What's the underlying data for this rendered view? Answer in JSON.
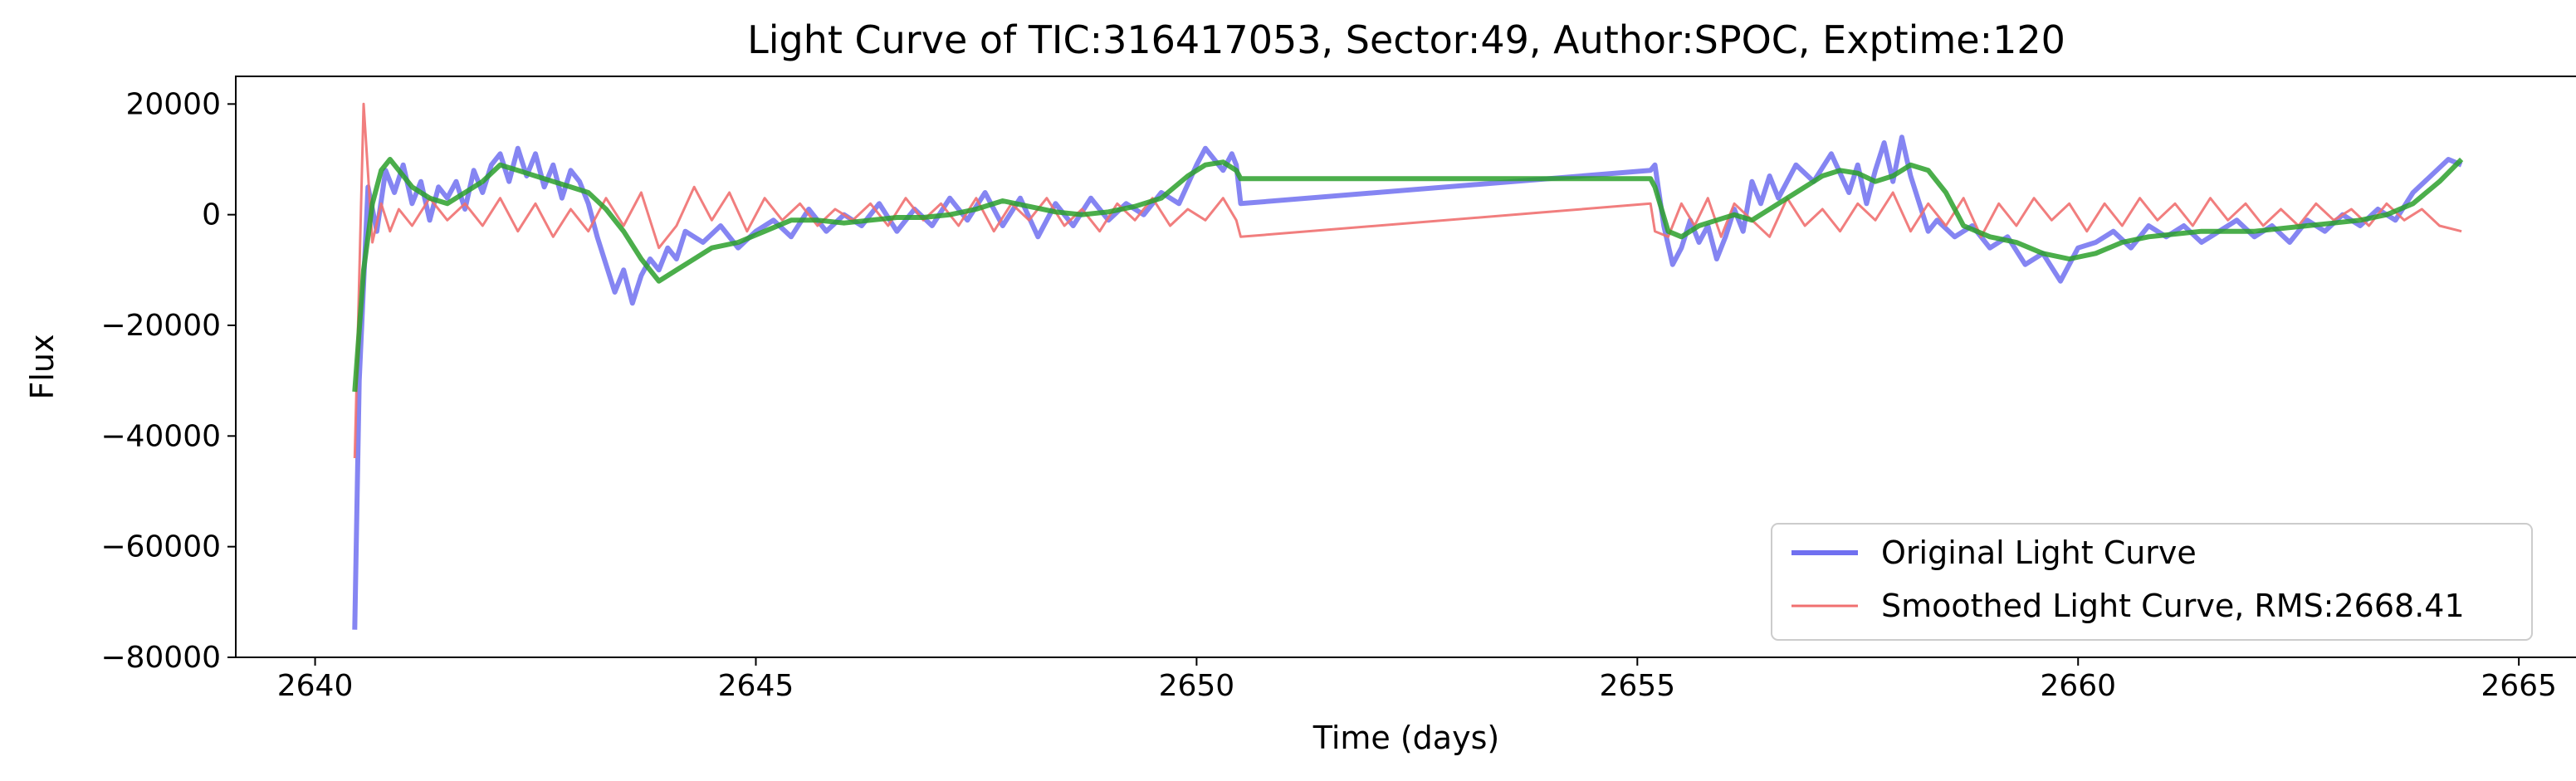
{
  "chart_data": {
    "type": "line",
    "title": "Light Curve of TIC:316417053, Sector:49, Author:SPOC, Exptime:120",
    "xlabel": "Time (days)",
    "ylabel": "Flux",
    "xlim": [
      2639.1,
      2665.3
    ],
    "ylim": [
      -80000,
      25000
    ],
    "x_ticks": [
      2640,
      2645,
      2650,
      2655,
      2660,
      2665
    ],
    "y_ticks": [
      -80000,
      -60000,
      -40000,
      -20000,
      0,
      20000
    ],
    "x_tick_labels": [
      "2640",
      "2645",
      "2650",
      "2655",
      "2660",
      "2665"
    ],
    "y_tick_labels": [
      "−80000",
      "−60000",
      "−40000",
      "−20000",
      "0",
      "20000"
    ],
    "grid": false,
    "legend_position": "lower-right",
    "series": [
      {
        "name": "Original Light Curve",
        "color": "#7070f0",
        "x": [
          2640.45,
          2640.5,
          2640.6,
          2640.7,
          2640.8,
          2640.9,
          2641.0,
          2641.1,
          2641.2,
          2641.3,
          2641.4,
          2641.5,
          2641.6,
          2641.7,
          2641.8,
          2641.9,
          2642.0,
          2642.1,
          2642.2,
          2642.3,
          2642.4,
          2642.5,
          2642.6,
          2642.7,
          2642.8,
          2642.9,
          2643.0,
          2643.1,
          2643.2,
          2643.3,
          2643.4,
          2643.5,
          2643.6,
          2643.7,
          2643.8,
          2643.9,
          2644.0,
          2644.1,
          2644.2,
          2644.4,
          2644.6,
          2644.8,
          2645.0,
          2645.2,
          2645.4,
          2645.6,
          2645.8,
          2646.0,
          2646.2,
          2646.4,
          2646.6,
          2646.8,
          2647.0,
          2647.2,
          2647.4,
          2647.6,
          2647.8,
          2648.0,
          2648.2,
          2648.4,
          2648.6,
          2648.8,
          2649.0,
          2649.2,
          2649.4,
          2649.6,
          2649.8,
          2650.0,
          2650.1,
          2650.2,
          2650.3,
          2650.4,
          2650.45,
          2650.5,
          2655.15,
          2655.2,
          2655.3,
          2655.4,
          2655.5,
          2655.6,
          2655.7,
          2655.8,
          2655.9,
          2656.0,
          2656.1,
          2656.2,
          2656.3,
          2656.4,
          2656.5,
          2656.6,
          2656.8,
          2657.0,
          2657.2,
          2657.4,
          2657.5,
          2657.6,
          2657.7,
          2657.8,
          2657.9,
          2658.0,
          2658.1,
          2658.2,
          2658.3,
          2658.4,
          2658.6,
          2658.8,
          2659.0,
          2659.2,
          2659.4,
          2659.6,
          2659.8,
          2660.0,
          2660.2,
          2660.4,
          2660.6,
          2660.8,
          2661.0,
          2661.2,
          2661.4,
          2661.6,
          2661.8,
          2662.0,
          2662.2,
          2662.4,
          2662.6,
          2662.8,
          2663.0,
          2663.2,
          2663.4,
          2663.6,
          2663.8,
          2664.0,
          2664.2,
          2664.35
        ],
        "y": [
          -75000,
          -30000,
          5000,
          -3000,
          8000,
          4000,
          9000,
          2000,
          6000,
          -1000,
          5000,
          3000,
          6000,
          1000,
          8000,
          4000,
          9000,
          11000,
          6000,
          12000,
          7000,
          11000,
          5000,
          9000,
          3000,
          8000,
          6000,
          2000,
          -4000,
          -9000,
          -14000,
          -10000,
          -16000,
          -11000,
          -8000,
          -10000,
          -6000,
          -8000,
          -3000,
          -5000,
          -2000,
          -6000,
          -3000,
          -1000,
          -4000,
          1000,
          -3000,
          0,
          -2000,
          2000,
          -3000,
          1000,
          -2000,
          3000,
          -1000,
          4000,
          -2000,
          3000,
          -4000,
          2000,
          -2000,
          3000,
          -1000,
          2000,
          0,
          4000,
          2000,
          9000,
          12000,
          10000,
          8000,
          11000,
          9000,
          2000,
          8000,
          9000,
          -2000,
          -9000,
          -6000,
          -1000,
          -5000,
          -2000,
          -8000,
          -4000,
          1000,
          -3000,
          6000,
          2000,
          7000,
          3000,
          9000,
          6000,
          11000,
          4000,
          9000,
          2000,
          8000,
          13000,
          6000,
          14000,
          7000,
          2000,
          -3000,
          -1000,
          -4000,
          -2000,
          -6000,
          -4000,
          -9000,
          -7000,
          -12000,
          -6000,
          -5000,
          -3000,
          -6000,
          -2000,
          -4000,
          -2000,
          -5000,
          -3000,
          -1000,
          -4000,
          -2000,
          -5000,
          -1000,
          -3000,
          0,
          -2000,
          1000,
          -1000,
          4000,
          7000,
          10000,
          9000
        ]
      },
      {
        "name": "Smoothed Light Curve, RMS:2668.41",
        "color": "#f07070",
        "x": [
          2640.45,
          2640.55,
          2640.65,
          2640.75,
          2640.85,
          2640.95,
          2641.1,
          2641.3,
          2641.5,
          2641.7,
          2641.9,
          2642.1,
          2642.3,
          2642.5,
          2642.7,
          2642.9,
          2643.1,
          2643.3,
          2643.5,
          2643.7,
          2643.9,
          2644.1,
          2644.3,
          2644.5,
          2644.7,
          2644.9,
          2645.1,
          2645.3,
          2645.5,
          2645.7,
          2645.9,
          2646.1,
          2646.3,
          2646.5,
          2646.7,
          2646.9,
          2647.1,
          2647.3,
          2647.5,
          2647.7,
          2647.9,
          2648.1,
          2648.3,
          2648.5,
          2648.7,
          2648.9,
          2649.1,
          2649.3,
          2649.5,
          2649.7,
          2649.9,
          2650.1,
          2650.3,
          2650.45,
          2650.5,
          2655.15,
          2655.2,
          2655.35,
          2655.5,
          2655.65,
          2655.8,
          2655.95,
          2656.1,
          2656.3,
          2656.5,
          2656.7,
          2656.9,
          2657.1,
          2657.3,
          2657.5,
          2657.7,
          2657.9,
          2658.1,
          2658.3,
          2658.5,
          2658.7,
          2658.9,
          2659.1,
          2659.3,
          2659.5,
          2659.7,
          2659.9,
          2660.1,
          2660.3,
          2660.5,
          2660.7,
          2660.9,
          2661.1,
          2661.3,
          2661.5,
          2661.7,
          2661.9,
          2662.1,
          2662.3,
          2662.5,
          2662.7,
          2662.9,
          2663.1,
          2663.3,
          2663.5,
          2663.7,
          2663.9,
          2664.1,
          2664.35
        ],
        "y": [
          -44000,
          20000,
          -5000,
          2000,
          -3000,
          1000,
          -2000,
          3000,
          -1000,
          2000,
          -2000,
          3000,
          -3000,
          2000,
          -4000,
          1000,
          -3000,
          3000,
          -2000,
          4000,
          -6000,
          -2000,
          5000,
          -1000,
          4000,
          -3000,
          3000,
          -1000,
          2000,
          -2000,
          1000,
          -1000,
          2000,
          -2000,
          3000,
          -1000,
          2000,
          -2000,
          3000,
          -3000,
          2000,
          -1000,
          3000,
          -2000,
          1000,
          -3000,
          2000,
          -1000,
          3000,
          -2000,
          1000,
          -1000,
          3000,
          -1000,
          -4000,
          2000,
          -3000,
          -4000,
          2000,
          -2000,
          3000,
          -4000,
          2000,
          -1000,
          -4000,
          3000,
          -2000,
          1000,
          -3000,
          2000,
          -1000,
          4000,
          -3000,
          2000,
          -2000,
          3000,
          -4000,
          2000,
          -2000,
          3000,
          -1000,
          2000,
          -3000,
          2000,
          -2000,
          3000,
          -1000,
          2000,
          -2000,
          3000,
          -1000,
          2000,
          -2000,
          1000,
          -2000,
          2000,
          -1000,
          1000,
          -2000,
          2000,
          -1000,
          1000,
          -2000,
          -3000
        ]
      },
      {
        "color": "#2ca02c",
        "x": [
          2640.45,
          2640.55,
          2640.65,
          2640.75,
          2640.85,
          2640.95,
          2641.1,
          2641.3,
          2641.5,
          2641.7,
          2641.9,
          2642.1,
          2642.3,
          2642.5,
          2642.7,
          2642.9,
          2643.1,
          2643.3,
          2643.5,
          2643.7,
          2643.9,
          2644.1,
          2644.3,
          2644.5,
          2644.8,
          2645.1,
          2645.4,
          2645.7,
          2646.0,
          2646.3,
          2646.6,
          2646.9,
          2647.2,
          2647.5,
          2647.8,
          2648.1,
          2648.4,
          2648.7,
          2649.0,
          2649.3,
          2649.6,
          2649.9,
          2650.1,
          2650.3,
          2650.45,
          2650.5,
          2655.15,
          2655.2,
          2655.35,
          2655.5,
          2655.7,
          2655.9,
          2656.1,
          2656.3,
          2656.5,
          2656.7,
          2656.9,
          2657.1,
          2657.3,
          2657.5,
          2657.7,
          2657.9,
          2658.1,
          2658.3,
          2658.5,
          2658.7,
          2659.0,
          2659.3,
          2659.6,
          2659.9,
          2660.2,
          2660.5,
          2660.8,
          2661.1,
          2661.4,
          2661.7,
          2662.0,
          2662.3,
          2662.6,
          2662.9,
          2663.2,
          2663.5,
          2663.8,
          2664.1,
          2664.35
        ],
        "y": [
          -32000,
          -10000,
          2000,
          8000,
          10000,
          8000,
          5000,
          3000,
          2000,
          4000,
          6000,
          9000,
          8000,
          7000,
          6000,
          5000,
          4000,
          1000,
          -3000,
          -8000,
          -12000,
          -10000,
          -8000,
          -6000,
          -5000,
          -3000,
          -1000,
          -1000,
          -1500,
          -1000,
          -500,
          -500,
          0,
          1000,
          2500,
          1500,
          500,
          0,
          500,
          1500,
          3000,
          7000,
          9000,
          9500,
          8000,
          6500,
          6500,
          5000,
          -3000,
          -4000,
          -2000,
          -1000,
          0,
          -1000,
          1000,
          3000,
          5000,
          7000,
          8000,
          7500,
          6000,
          7000,
          9000,
          8000,
          4000,
          -2000,
          -4000,
          -5000,
          -7000,
          -8000,
          -7000,
          -5000,
          -4000,
          -3500,
          -3000,
          -3000,
          -3000,
          -2500,
          -2000,
          -1500,
          -1000,
          0,
          2000,
          6000,
          10000
        ]
      }
    ]
  }
}
